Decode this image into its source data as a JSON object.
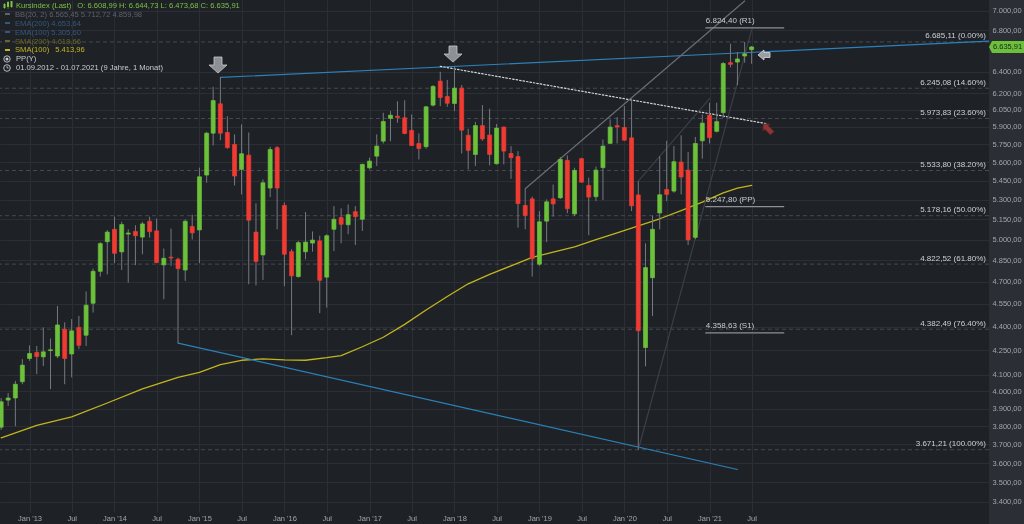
{
  "chart_data": {
    "type": "candlestick",
    "log": true,
    "grid": true,
    "legend": "top left",
    "xlim": [
      "2012-08-27",
      "2024-04-16"
    ],
    "xticks": [
      {
        "value": "2013-01",
        "label": "Jan '13"
      },
      {
        "value": "2013-07",
        "label": "Jul"
      },
      {
        "value": "2014-01",
        "label": "Jan '14"
      },
      {
        "value": "2014-07",
        "label": "Jul"
      },
      {
        "value": "2015-01",
        "label": "Jan '15"
      },
      {
        "value": "2015-07",
        "label": "Jul"
      },
      {
        "value": "2016-01",
        "label": "Jan '16"
      },
      {
        "value": "2016-07",
        "label": "Jul"
      },
      {
        "value": "2017-01",
        "label": "Jan '17"
      },
      {
        "value": "2017-07",
        "label": "Jul"
      },
      {
        "value": "2018-01",
        "label": "Jan '18"
      },
      {
        "value": "2018-07",
        "label": "Jul"
      },
      {
        "value": "2019-01",
        "label": "Jan '19"
      },
      {
        "value": "2019-07",
        "label": "Jul"
      },
      {
        "value": "2020-01",
        "label": "Jan '20"
      },
      {
        "value": "2020-07",
        "label": "Jul"
      },
      {
        "value": "2021-01",
        "label": "Jan '21"
      },
      {
        "value": "2021-07",
        "label": "Jul"
      }
    ],
    "ylim": [
      3350,
      7110
    ],
    "yticks": [
      {
        "value": 7000,
        "label": "7.000,00"
      },
      {
        "value": 6800,
        "label": "6.800,00"
      },
      {
        "value": 6400,
        "label": "6.400,00"
      },
      {
        "value": 6200,
        "label": "6.200,00"
      },
      {
        "value": 6050,
        "label": "6.050,00"
      },
      {
        "value": 5900,
        "label": "5.900,00"
      },
      {
        "value": 5750,
        "label": "5.750,00"
      },
      {
        "value": 5600,
        "label": "5.600,00"
      },
      {
        "value": 5450,
        "label": "5.450,00"
      },
      {
        "value": 5300,
        "label": "5.300,00"
      },
      {
        "value": 5150,
        "label": "5.150,00"
      },
      {
        "value": 5000,
        "label": "5.000,00"
      },
      {
        "value": 4850,
        "label": "4.850,00"
      },
      {
        "value": 4700,
        "label": "4.700,00"
      },
      {
        "value": 4550,
        "label": "4.550,00"
      },
      {
        "value": 4400,
        "label": "4.400,00"
      },
      {
        "value": 4250,
        "label": "4.250,00"
      },
      {
        "value": 4100,
        "label": "4.100,00"
      },
      {
        "value": 4000,
        "label": "4.000,00"
      },
      {
        "value": 3900,
        "label": "3.900,00"
      },
      {
        "value": 3800,
        "label": "3.800,00"
      },
      {
        "value": 3700,
        "label": "3.700,00"
      },
      {
        "value": 3600,
        "label": "3.600,00"
      },
      {
        "value": 3500,
        "label": "3.500,00"
      },
      {
        "value": 3400,
        "label": "3.400,00"
      }
    ],
    "series": [
      {
        "name": "Kursindex (Last)",
        "color": "#7cc243",
        "x": [
          "2012-09",
          "2012-10",
          "2012-11",
          "2012-12",
          "2013-01",
          "2013-02",
          "2013-03",
          "2013-04",
          "2013-05",
          "2013-06",
          "2013-07",
          "2013-08",
          "2013-09",
          "2013-10",
          "2013-11",
          "2013-12",
          "2014-01",
          "2014-02",
          "2014-03",
          "2014-04",
          "2014-05",
          "2014-06",
          "2014-07",
          "2014-08",
          "2014-09",
          "2014-10",
          "2014-11",
          "2014-12",
          "2015-01",
          "2015-02",
          "2015-03",
          "2015-04",
          "2015-05",
          "2015-06",
          "2015-07",
          "2015-08",
          "2015-09",
          "2015-10",
          "2015-11",
          "2015-12",
          "2016-01",
          "2016-02",
          "2016-03",
          "2016-04",
          "2016-05",
          "2016-06",
          "2016-07",
          "2016-08",
          "2016-09",
          "2016-10",
          "2016-11",
          "2016-12",
          "2017-01",
          "2017-02",
          "2017-03",
          "2017-04",
          "2017-05",
          "2017-06",
          "2017-07",
          "2017-08",
          "2017-09",
          "2017-10",
          "2017-11",
          "2017-12",
          "2018-01",
          "2018-02",
          "2018-03",
          "2018-04",
          "2018-05",
          "2018-06",
          "2018-07",
          "2018-08",
          "2018-09",
          "2018-10",
          "2018-11",
          "2018-12",
          "2019-01",
          "2019-02",
          "2019-03",
          "2019-04",
          "2019-05",
          "2019-06",
          "2019-07",
          "2019-08",
          "2019-09",
          "2019-10",
          "2019-11",
          "2019-12",
          "2020-01",
          "2020-02",
          "2020-03",
          "2020-04",
          "2020-05",
          "2020-06",
          "2020-07",
          "2020-08",
          "2020-09",
          "2020-10",
          "2020-11",
          "2020-12",
          "2021-01",
          "2021-02",
          "2021-03",
          "2021-04",
          "2021-05",
          "2021-06",
          "2021-07"
        ],
        "ohlc": [
          [
            3795,
            3960,
            3780,
            3939
          ],
          [
            3949,
            3990,
            3915,
            3961
          ],
          [
            3961,
            4062,
            3800,
            4042
          ],
          [
            4057,
            4194,
            4042,
            4157
          ],
          [
            4198,
            4280,
            4184,
            4229
          ],
          [
            4235,
            4276,
            4103,
            4210
          ],
          [
            4208,
            4394,
            4152,
            4239
          ],
          [
            4247,
            4323,
            4013,
            4252
          ],
          [
            4213,
            4535,
            4200,
            4410
          ],
          [
            4383,
            4427,
            4042,
            4198
          ],
          [
            4226,
            4448,
            4083,
            4372
          ],
          [
            4394,
            4469,
            4256,
            4280
          ],
          [
            4344,
            4632,
            4276,
            4540
          ],
          [
            4553,
            4791,
            4491,
            4772
          ],
          [
            4772,
            4981,
            4735,
            4970
          ],
          [
            4984,
            5070,
            4750,
            5055
          ],
          [
            5076,
            5171,
            4829,
            4900
          ],
          [
            4910,
            5132,
            4781,
            5111
          ],
          [
            5040,
            5076,
            4693,
            5048
          ],
          [
            5060,
            5106,
            4815,
            5028
          ],
          [
            5018,
            5132,
            4893,
            5116
          ],
          [
            5136,
            5171,
            5014,
            5058
          ],
          [
            5064,
            5156,
            4829,
            4834
          ],
          [
            4817,
            4934,
            4580,
            4864
          ],
          [
            4872,
            5081,
            4810,
            4866
          ],
          [
            4857,
            4869,
            4294,
            4791
          ],
          [
            4781,
            5151,
            4705,
            5136
          ],
          [
            5097,
            5186,
            5000,
            5049
          ],
          [
            5071,
            5557,
            4829,
            5483
          ],
          [
            5497,
            5857,
            5435,
            5846
          ],
          [
            5846,
            6258,
            5741,
            6133
          ],
          [
            6104,
            6345,
            5786,
            5846
          ],
          [
            5852,
            5994,
            5714,
            5723
          ],
          [
            5750,
            5836,
            5414,
            5489
          ],
          [
            5543,
            5922,
            5343,
            5672
          ],
          [
            5660,
            5852,
            4682,
            5144
          ],
          [
            5055,
            5273,
            4674,
            4842
          ],
          [
            4888,
            5462,
            4712,
            5435
          ],
          [
            5393,
            5731,
            5322,
            5708
          ],
          [
            5723,
            5736,
            5076,
            5393
          ],
          [
            5257,
            5280,
            4668,
            4893
          ],
          [
            4912,
            4929,
            4344,
            4740
          ],
          [
            4735,
            4990,
            4728,
            4977
          ],
          [
            4911,
            5206,
            4857,
            4981
          ],
          [
            4974,
            5060,
            4912,
            4996
          ],
          [
            4990,
            5028,
            4487,
            4709
          ],
          [
            4731,
            5039,
            4524,
            5028
          ],
          [
            5076,
            5252,
            4916,
            5151
          ],
          [
            5164,
            5234,
            4972,
            5113
          ],
          [
            5110,
            5265,
            5039,
            5186
          ],
          [
            5209,
            5252,
            4960,
            5171
          ],
          [
            5151,
            5589,
            5064,
            5584
          ],
          [
            5556,
            5640,
            5543,
            5611
          ],
          [
            5652,
            5836,
            5571,
            5736
          ],
          [
            5778,
            6024,
            5758,
            5948
          ],
          [
            5974,
            6039,
            5777,
            6003
          ],
          [
            5994,
            6127,
            5936,
            5983
          ],
          [
            5980,
            6136,
            5836,
            5843
          ],
          [
            5870,
            6009,
            5736,
            5741
          ],
          [
            5758,
            5844,
            5625,
            5716
          ],
          [
            5731,
            6085,
            5714,
            6077
          ],
          [
            6092,
            6274,
            6080,
            6262
          ],
          [
            6311,
            6398,
            6083,
            6161
          ],
          [
            6170,
            6322,
            6077,
            6109
          ],
          [
            6107,
            6449,
            6039,
            6246
          ],
          [
            6246,
            6274,
            5674,
            5872
          ],
          [
            5828,
            5884,
            5543,
            5700
          ],
          [
            5666,
            5943,
            5571,
            5911
          ],
          [
            5911,
            6092,
            5781,
            5797
          ],
          [
            5830,
            6060,
            5576,
            5666
          ],
          [
            5589,
            5926,
            5583,
            5890
          ],
          [
            5899,
            5902,
            5584,
            5694
          ],
          [
            5674,
            5736,
            5467,
            5639
          ],
          [
            5649,
            5694,
            5088,
            5271
          ],
          [
            5257,
            5388,
            5076,
            5180
          ],
          [
            5308,
            5326,
            4735,
            4861
          ],
          [
            4822,
            5214,
            4810,
            5132
          ],
          [
            5137,
            5304,
            4981,
            5285
          ],
          [
            5308,
            5421,
            5171,
            5269
          ],
          [
            5316,
            5644,
            5308,
            5625
          ],
          [
            5617,
            5658,
            5197,
            5232
          ],
          [
            5192,
            5557,
            5176,
            5535
          ],
          [
            5631,
            5639,
            5435,
            5440
          ],
          [
            5414,
            5476,
            5032,
            5322
          ],
          [
            5325,
            5566,
            5290,
            5537
          ],
          [
            5557,
            5792,
            5298,
            5736
          ],
          [
            5759,
            5965,
            5758,
            5899
          ],
          [
            5911,
            5985,
            5758,
            5899
          ],
          [
            5895,
            6083,
            5781,
            5786
          ],
          [
            5806,
            6149,
            5214,
            5254
          ],
          [
            5339,
            5448,
            3671.21,
            4373
          ],
          [
            4266,
            4972,
            4150,
            4798
          ],
          [
            4727,
            5180,
            4469,
            5076
          ],
          [
            5199,
            5652,
            5076,
            5340
          ],
          [
            5382,
            5781,
            5290,
            5343
          ],
          [
            5369,
            5736,
            5356,
            5606
          ],
          [
            5603,
            5827,
            5343,
            5481
          ],
          [
            5537,
            5686,
            4960,
            4997
          ],
          [
            5016,
            5814,
            5002,
            5758
          ],
          [
            5781,
            6009,
            5631,
            5933
          ],
          [
            6002,
            6113,
            5758,
            5808
          ],
          [
            5862,
            6113,
            5852,
            5946
          ],
          [
            6025,
            6491,
            5980,
            6476
          ],
          [
            6484,
            6668,
            6440,
            6468
          ],
          [
            6490,
            6585,
            6274,
            6520
          ],
          [
            6548,
            6685.11,
            6484,
            6570
          ],
          [
            6608.99,
            6644.73,
            6473.68,
            6635.91
          ]
        ],
        "colors": [
          "#6cc13a",
          "#6cc13a",
          "#6cc13a",
          "#6cc13a",
          "#6cc13a",
          "#ef3b32",
          "#6cc13a",
          "#6cc13a",
          "#6cc13a",
          "#ef3b32",
          "#6cc13a",
          "#ef3b32",
          "#6cc13a",
          "#6cc13a",
          "#6cc13a",
          "#6cc13a",
          "#ef3b32",
          "#6cc13a",
          "#6cc13a",
          "#ef3b32",
          "#6cc13a",
          "#ef3b32",
          "#ef3b32",
          "#6cc13a",
          "#ef3b32",
          "#ef3b32",
          "#6cc13a",
          "#ef3b32",
          "#6cc13a",
          "#6cc13a",
          "#6cc13a",
          "#ef3b32",
          "#ef3b32",
          "#ef3b32",
          "#6cc13a",
          "#ef3b32",
          "#ef3b32",
          "#6cc13a",
          "#6cc13a",
          "#ef3b32",
          "#ef3b32",
          "#ef3b32",
          "#6cc13a",
          "#6cc13a",
          "#6cc13a",
          "#ef3b32",
          "#6cc13a",
          "#6cc13a",
          "#ef3b32",
          "#6cc13a",
          "#ef3b32",
          "#6cc13a",
          "#6cc13a",
          "#6cc13a",
          "#6cc13a",
          "#6cc13a",
          "#ef3b32",
          "#ef3b32",
          "#ef3b32",
          "#ef3b32",
          "#6cc13a",
          "#6cc13a",
          "#ef3b32",
          "#ef3b32",
          "#6cc13a",
          "#ef3b32",
          "#ef3b32",
          "#6cc13a",
          "#ef3b32",
          "#ef3b32",
          "#6cc13a",
          "#ef3b32",
          "#ef3b32",
          "#ef3b32",
          "#ef3b32",
          "#ef3b32",
          "#6cc13a",
          "#6cc13a",
          "#ef3b32",
          "#6cc13a",
          "#ef3b32",
          "#6cc13a",
          "#ef3b32",
          "#ef3b32",
          "#6cc13a",
          "#6cc13a",
          "#6cc13a",
          "#ef3b32",
          "#ef3b32",
          "#ef3b32",
          "#ef3b32",
          "#6cc13a",
          "#6cc13a",
          "#6cc13a",
          "#ef3b32",
          "#6cc13a",
          "#ef3b32",
          "#ef3b32",
          "#6cc13a",
          "#6cc13a",
          "#ef3b32",
          "#6cc13a",
          "#6cc13a",
          "#ef3b32",
          "#6cc13a",
          "#6cc13a",
          "#6cc13a"
        ]
      },
      {
        "type": "line",
        "name": "SMA(100)",
        "color": "#c2b51e",
        "x": [
          "2012-09",
          "2013-02",
          "2013-07",
          "2013-12",
          "2014-05",
          "2014-10",
          "2015-01",
          "2015-04",
          "2015-07",
          "2015-10",
          "2016-01",
          "2016-04",
          "2016-07",
          "2016-09",
          "2016-12",
          "2017-03",
          "2017-06",
          "2017-09",
          "2017-12",
          "2018-03",
          "2018-06",
          "2018-09",
          "2018-12",
          "2019-03",
          "2019-06",
          "2019-09",
          "2019-12",
          "2020-03",
          "2020-06",
          "2020-09",
          "2020-12",
          "2021-03",
          "2021-05",
          "2021-07"
        ],
        "values": [
          3736,
          3805,
          3853,
          3932,
          4015,
          4083,
          4113,
          4160,
          4187,
          4196,
          4190,
          4187,
          4203,
          4216,
          4271,
          4331,
          4414,
          4508,
          4598,
          4685,
          4751,
          4810,
          4870,
          4909,
          4946,
          4999,
          5049,
          5102,
          5155,
          5217,
          5283,
          5355,
          5392,
          5413.96
        ]
      },
      {
        "type": "line",
        "color": "#2c82b8",
        "x": [
          "2015-04",
          "2024-04-16"
        ],
        "values": [
          6345,
          6693
        ]
      },
      {
        "type": "line",
        "color": "#2c82b8",
        "x": [
          "2014-10",
          "2021-05"
        ],
        "values": [
          4294,
          3566
        ]
      },
      {
        "type": "line",
        "color": "#d4d6da",
        "line_style": "dotted",
        "x": [
          "2017-11",
          "2021-09"
        ],
        "values": [
          6449,
          5929
        ]
      },
      {
        "type": "line",
        "color": "#6a6d74",
        "x": [
          "2018-11",
          "2021-06"
        ],
        "values": [
          5388,
          7100
        ]
      },
      {
        "type": "line",
        "color": "#3c3f47",
        "x": [
          "2020-03",
          "2021-07"
        ],
        "values": [
          3671,
          6807
        ]
      },
      {
        "type": "line",
        "color": "#3c3f47",
        "x": [
          "2020-03",
          "2021-01"
        ],
        "values": [
          5448,
          6150
        ]
      },
      {
        "type": "line",
        "color": "#8c8f95",
        "x": [
          "2020-12-16",
          "2021-11-16"
        ],
        "values": [
          6824.4,
          6824.4
        ]
      },
      {
        "type": "line",
        "color": "#8c8f95",
        "x": [
          "2020-12-16",
          "2021-11-16"
        ],
        "values": [
          5247.8,
          5247.8
        ]
      },
      {
        "type": "line",
        "color": "#8c8f95",
        "x": [
          "2020-12-16",
          "2021-11-16"
        ],
        "values": [
          4358.63,
          4358.63
        ]
      }
    ],
    "ref_lines": [
      {
        "axis": "y",
        "value": 6685.11,
        "label": "6.685,11 (0.00%)",
        "color": "#474a52",
        "line_style": "dashed"
      },
      {
        "axis": "y",
        "value": 6245.08,
        "label": "6.245,08 (14.60%)",
        "color": "#474a52",
        "line_style": "dashed"
      },
      {
        "axis": "y",
        "value": 5973.83,
        "label": "5.973,83 (23.60%)",
        "color": "#474a52",
        "line_style": "dashed"
      },
      {
        "axis": "y",
        "value": 5533.8,
        "label": "5.533,80 (38.20%)",
        "color": "#474a52",
        "line_style": "dashed"
      },
      {
        "axis": "y",
        "value": 5178.16,
        "label": "5.178,16 (50.00%)",
        "color": "#474a52",
        "line_style": "dashed"
      },
      {
        "axis": "y",
        "value": 4822.52,
        "label": "4.822,52 (61.80%)",
        "color": "#474a52",
        "line_style": "dashed"
      },
      {
        "axis": "y",
        "value": 4382.49,
        "label": "4.382,49 (76.40%)",
        "color": "#474a52",
        "line_style": "dashed"
      },
      {
        "axis": "y",
        "value": 3671.21,
        "label": "3.671,21 (100.00%)",
        "color": "#474a52",
        "line_style": "dashed"
      }
    ],
    "annotations": [
      "O: 6.608,99 H: 6.644,73 L: 6.473,68 C: 6.635,91",
      "BB(20, 2) 6.565,45 5.712,72 4.859,98",
      "EMA(200) 4.653,64",
      "EMA(100) 5.305,60",
      "SMA(200) 4.618,66",
      "5.413,96",
      "PP(Y)",
      "01.09.2012 - 01.07.2021 (9 Jahre, 1 Monat)",
      "6.635,91",
      {
        "text": "6.824,40 (R1)",
        "x": "2020-12-16",
        "y": 6824.4
      },
      {
        "text": "5.247,80 (PP)",
        "x": "2020-12-16",
        "y": 5247.8
      },
      {
        "text": "4.358,63 (S1)",
        "x": "2020-12-16",
        "y": 4358.63
      }
    ]
  }
}
